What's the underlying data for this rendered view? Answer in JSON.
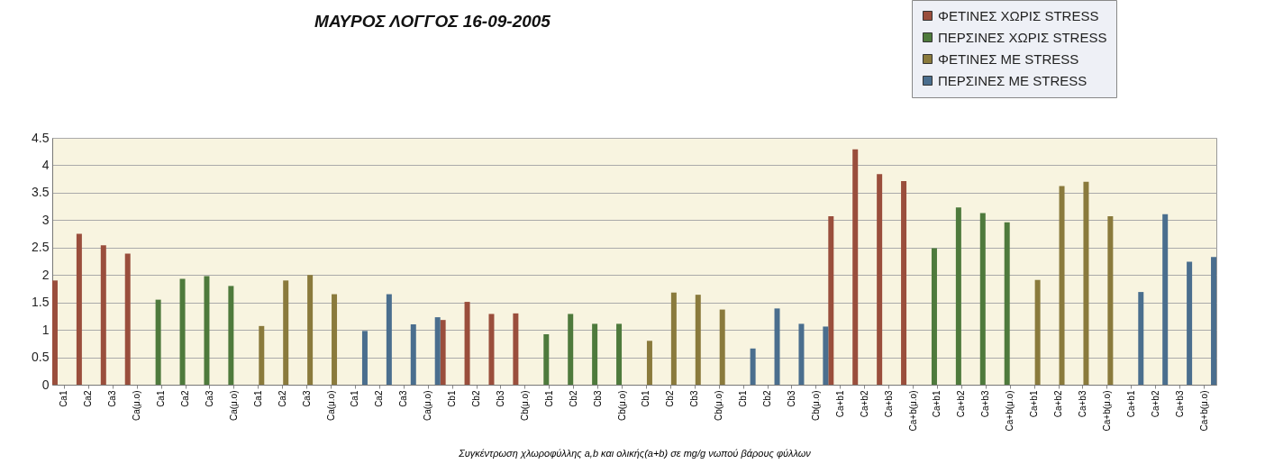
{
  "chart_data": {
    "type": "bar",
    "title": "ΜΑΥΡΟΣ ΛΟΓΓΟΣ 16-09-2005",
    "xlabel": "Συγκέντρωση χλωροφύλλης a,b και ολικής(a+b) σε mg/g νωπού βάρους φύλλων",
    "categories": [
      "Ca1",
      "Ca2",
      "Ca3",
      "Ca(μ.ο)",
      "Ca1",
      "Ca2",
      "Ca3",
      "Ca(μ.ο)",
      "Ca1",
      "Ca2",
      "Ca3",
      "Ca(μ.ο)",
      "Ca1",
      "Ca2",
      "Ca3",
      "Ca(μ.ο)",
      "Cb1",
      "Cb2",
      "Cb3",
      "Cb(μ.ο)",
      "Cb1",
      "Cb2",
      "Cb3",
      "Cb(μ.ο)",
      "Cb1",
      "Cb2",
      "Cb3",
      "Cb(μ.ο)",
      "Cb1",
      "Cb2",
      "Cb3",
      "Cb(μ.ο)",
      "Ca+b1",
      "Ca+b2",
      "Ca+b3",
      "Ca+b(μ.ο)",
      "Ca+b1",
      "Ca+b2",
      "Ca+b3",
      "Ca+b(μ.ο)",
      "Ca+b1",
      "Ca+b2",
      "Ca+b3",
      "Ca+b(μ.ο)",
      "Ca+b1",
      "Ca+b2",
      "Ca+b3",
      "Ca+b(μ.ο)"
    ],
    "series": [
      {
        "name": "ΦΕΤΙΝΕΣ ΧΩΡΙΣ STRESS",
        "color": "#9a4e3c",
        "values": [
          1.9,
          2.75,
          2.54,
          2.39,
          null,
          null,
          null,
          null,
          null,
          null,
          null,
          null,
          null,
          null,
          null,
          null,
          1.18,
          1.51,
          1.29,
          1.3,
          null,
          null,
          null,
          null,
          null,
          null,
          null,
          null,
          null,
          null,
          null,
          null,
          3.07,
          4.29,
          3.84,
          3.71,
          null,
          null,
          null,
          null,
          null,
          null,
          null,
          null,
          null,
          null,
          null,
          null
        ]
      },
      {
        "name": "ΠΕΡΣΙΝΕΣ ΧΩΡΙΣ STRESS",
        "color": "#4e7a3c",
        "values": [
          null,
          null,
          null,
          null,
          1.55,
          1.93,
          1.98,
          1.8,
          null,
          null,
          null,
          null,
          null,
          null,
          null,
          null,
          null,
          null,
          null,
          null,
          0.92,
          1.29,
          1.11,
          1.11,
          null,
          null,
          null,
          null,
          null,
          null,
          null,
          null,
          null,
          null,
          null,
          null,
          2.49,
          3.23,
          3.13,
          2.96,
          null,
          null,
          null,
          null,
          null,
          null,
          null,
          null
        ]
      },
      {
        "name": "ΦΕΤΙΝΕΣ ΜΕ STRESS",
        "color": "#8a7a3c",
        "values": [
          null,
          null,
          null,
          null,
          null,
          null,
          null,
          null,
          1.07,
          1.9,
          2.0,
          1.65,
          null,
          null,
          null,
          null,
          null,
          null,
          null,
          null,
          null,
          null,
          null,
          null,
          0.8,
          1.68,
          1.64,
          1.37,
          null,
          null,
          null,
          null,
          null,
          null,
          null,
          null,
          null,
          null,
          null,
          null,
          1.91,
          3.62,
          3.7,
          3.07,
          null,
          null,
          null,
          null
        ]
      },
      {
        "name": "ΠΕΡΣΙΝΕΣ ΜΕ STRESS",
        "color": "#4a6e8e",
        "values": [
          null,
          null,
          null,
          null,
          null,
          null,
          null,
          null,
          null,
          null,
          null,
          null,
          0.98,
          1.65,
          1.1,
          1.23,
          null,
          null,
          null,
          null,
          null,
          null,
          null,
          null,
          null,
          null,
          null,
          null,
          0.66,
          1.39,
          1.11,
          1.06,
          null,
          null,
          null,
          null,
          null,
          null,
          null,
          null,
          null,
          null,
          null,
          null,
          1.69,
          3.11,
          2.24,
          2.33
        ]
      }
    ],
    "ylim": [
      0,
      4.5
    ],
    "yticks": [
      0,
      0.5,
      1,
      1.5,
      2,
      2.5,
      3,
      3.5,
      4,
      4.5
    ],
    "grid": true,
    "legend": "top right"
  }
}
